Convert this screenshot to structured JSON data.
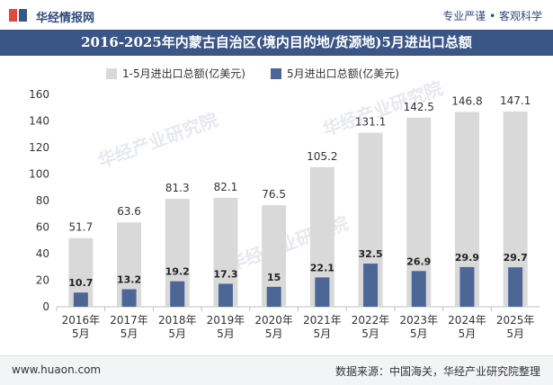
{
  "header": {
    "logo_text": "华经情报网",
    "slogan": "专业严谨 • 客观科学",
    "title": "2016-2025年内蒙古自治区(境内目的地/货源地)5月进出口总额"
  },
  "watermark": {
    "text": "华经产业研究院",
    "url": "www.huaon.com"
  },
  "footer": {
    "website": "www.huaon.com",
    "source": "数据来源：中国海关，华经产业研究院整理"
  },
  "colors": {
    "title_bar": "#3a5686",
    "series_1": "#d9d9d9",
    "series_2": "#4c6696"
  },
  "chart_data": {
    "type": "bar",
    "title": "2016-2025年内蒙古自治区(境内目的地/货源地)5月进出口总额",
    "categories": [
      "2016年\n5月",
      "2017年\n5月",
      "2018年\n5月",
      "2019年\n5月",
      "2020年\n5月",
      "2021年\n5月",
      "2022年\n5月",
      "2023年\n5月",
      "2024年\n5月",
      "2025年\n5月"
    ],
    "series": [
      {
        "name": "1-5月进出口总额(亿美元)",
        "values": [
          51.7,
          63.6,
          81.3,
          82.1,
          76.5,
          105.2,
          131.1,
          142.5,
          146.8,
          147.1
        ]
      },
      {
        "name": "5月进出口总额(亿美元)",
        "values": [
          10.7,
          13.2,
          19.2,
          17.3,
          15,
          22.1,
          32.5,
          26.9,
          29.9,
          29.7
        ]
      }
    ],
    "ylim": [
      0,
      160
    ],
    "yticks": [
      0,
      20,
      40,
      60,
      80,
      100,
      120,
      140,
      160
    ],
    "legend_position": "top",
    "grid": false
  }
}
